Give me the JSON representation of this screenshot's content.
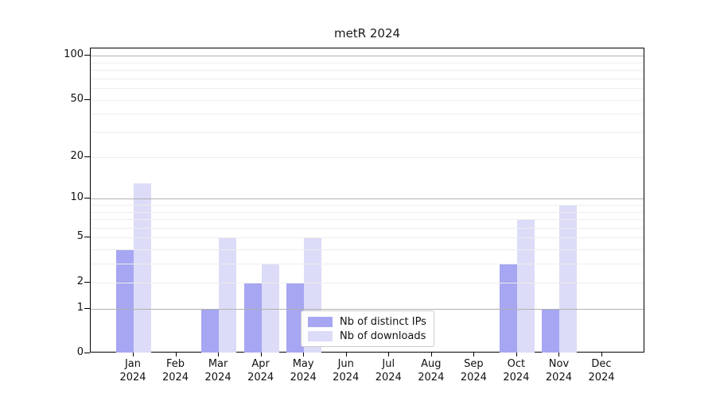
{
  "chart_data": {
    "type": "bar",
    "title": "metR 2024",
    "categories": [
      "Jan",
      "Feb",
      "Mar",
      "Apr",
      "May",
      "Jun",
      "Jul",
      "Aug",
      "Sep",
      "Oct",
      "Nov",
      "Dec"
    ],
    "x_year_label": "2024",
    "series": [
      {
        "name": "Nb of distinct IPs",
        "color": "#a6a6f2",
        "values": [
          4,
          0,
          1,
          2,
          2,
          0,
          0,
          0,
          0,
          3,
          1,
          0
        ]
      },
      {
        "name": "Nb of downloads",
        "color": "#dcdcf8",
        "values": [
          13,
          0,
          5,
          3,
          5,
          0,
          0,
          0,
          0,
          7,
          9,
          0
        ]
      }
    ],
    "y_scale": "log10(1+x)",
    "ylim": [
      0,
      112
    ],
    "y_ticks": [
      0,
      1,
      2,
      5,
      10,
      20,
      50,
      100
    ],
    "y_major_gridlines": [
      1,
      10,
      100
    ],
    "y_minor_gridlines": [
      2,
      3,
      4,
      5,
      6,
      7,
      8,
      9,
      20,
      30,
      40,
      50,
      60,
      70,
      80,
      90
    ],
    "grid": true,
    "legend_position": "inside-bottom-center",
    "colors": {
      "major_grid": "#b0b0b0",
      "minor_grid": "#ededed",
      "spine": "#000000",
      "text": "#111111"
    }
  }
}
